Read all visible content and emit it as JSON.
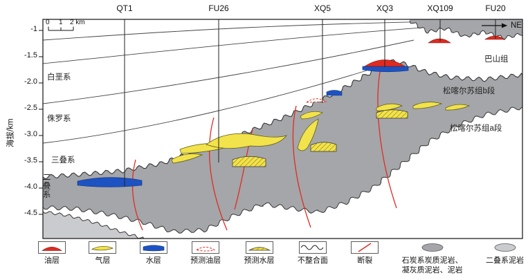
{
  "axis": {
    "ylabel": "海拔/km",
    "ticks": [
      "-1",
      "-1.5",
      "-2.0",
      "-2.5",
      "-3.0",
      "-3.5",
      "-4.0",
      "-4.5"
    ]
  },
  "wells": [
    "QT1",
    "FU26",
    "XQ5",
    "XQ3",
    "XQ109",
    "FU20"
  ],
  "scalebar": {
    "labels": [
      "0",
      "1",
      "2 km"
    ]
  },
  "direction": "NE",
  "strata_left": [
    "白垩系",
    "侏罗系",
    "三叠系",
    "二叠系"
  ],
  "strata_right": [
    "巴山组",
    "松喀尔苏组b段",
    "松喀尔苏组a段"
  ],
  "legend": [
    {
      "type": "oil",
      "label": "油层"
    },
    {
      "type": "gas",
      "label": "气层"
    },
    {
      "type": "water",
      "label": "水层"
    },
    {
      "type": "predicted-oil",
      "label": "预测油层"
    },
    {
      "type": "predicted-water",
      "label": "预测水层"
    },
    {
      "type": "unconformity",
      "label": "不整合面"
    },
    {
      "type": "fault",
      "label": "断裂"
    },
    {
      "type": "carboniferous-mudstone",
      "label": "石炭系炭质泥岩、",
      "label2": "凝灰质泥岩、泥岩"
    },
    {
      "type": "permian-mudstone",
      "label": "二叠系泥岩"
    }
  ],
  "colors": {
    "oil": "#e02b20",
    "gas": "#f2e24b",
    "water": "#1d52c2",
    "fault": "#e02b20",
    "carboniferous_mudstone": "#a4a6a9",
    "permian_mudstone": "#c9cbce",
    "line": "#333333"
  }
}
